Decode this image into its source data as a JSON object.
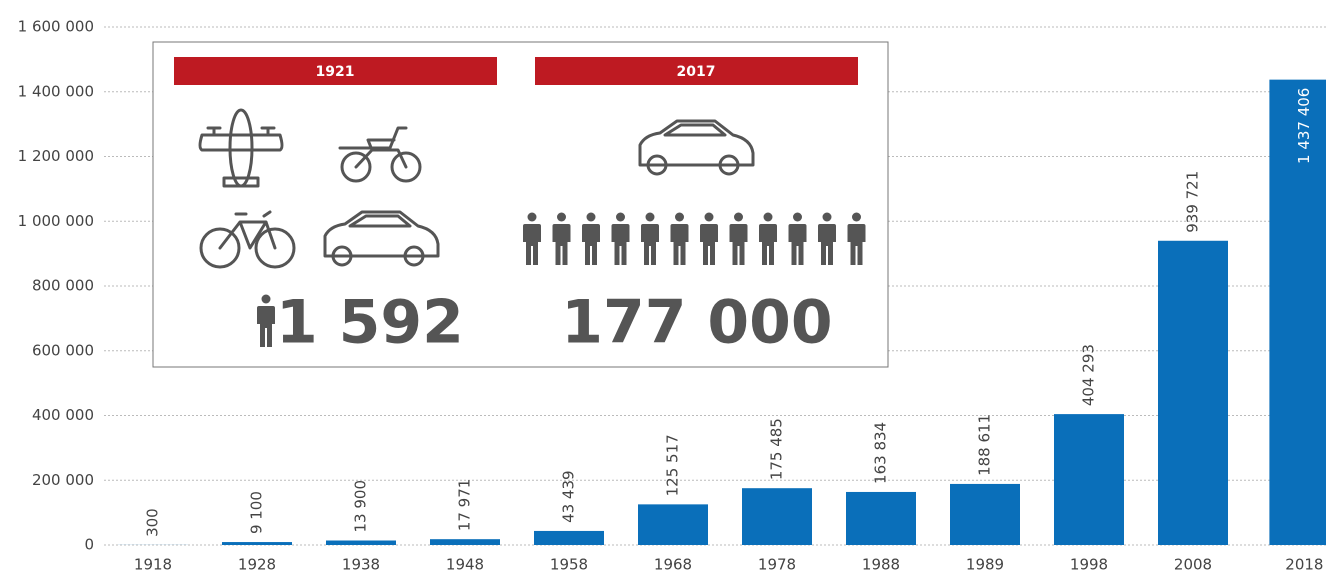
{
  "chart_data": {
    "type": "bar",
    "categories": [
      "1918",
      "1928",
      "1938",
      "1948",
      "1958",
      "1968",
      "1978",
      "1988",
      "1989",
      "1998",
      "2008",
      "2018"
    ],
    "values": [
      300,
      9100,
      13900,
      17971,
      43439,
      125517,
      175485,
      163834,
      188611,
      404293,
      939721,
      1437406
    ],
    "value_labels": [
      "300",
      "9 100",
      "13 900",
      "17 971",
      "43 439",
      "125 517",
      "175 485",
      "163 834",
      "188 611",
      "404 293",
      "939 721",
      "1 437 406"
    ],
    "color": "#0a6fba",
    "ylim": [
      0,
      1600000
    ],
    "yticks": [
      0,
      {
        "value": 200000,
        "label": "200 000"
      },
      {
        "value": 400000,
        "label": "400 000"
      },
      {
        "value": 600000,
        "label": "600 000"
      },
      {
        "value": 800000,
        "label": "800 000"
      },
      {
        "value": 1000000,
        "label": "1 000 000"
      },
      {
        "value": 1200000,
        "label": "1 200 000"
      },
      {
        "value": 1400000,
        "label": "1 400 000"
      },
      {
        "value": 1600000,
        "label": "1 600 000"
      }
    ],
    "grid": true
  },
  "inset": {
    "left": {
      "year": "1921",
      "count": "1 592"
    },
    "right": {
      "year": "2017",
      "count": "177 000"
    }
  }
}
